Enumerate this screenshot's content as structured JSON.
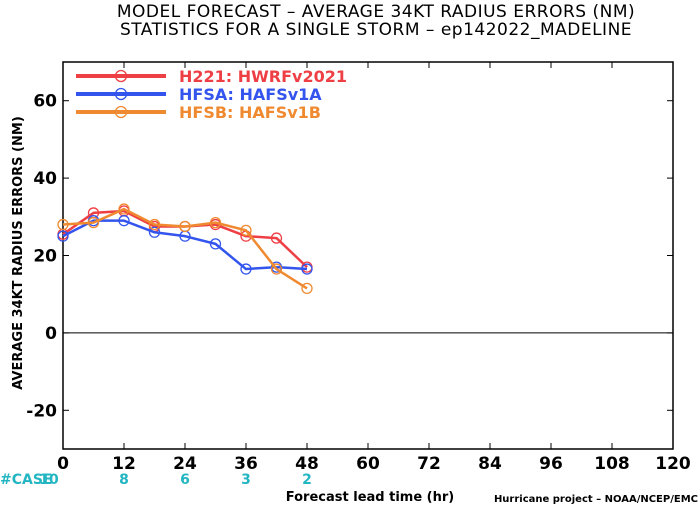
{
  "title_line1": "MODEL FORECAST – AVERAGE 34KT RADIUS ERRORS (NM)",
  "title_line2": "STATISTICS FOR A SINGLE STORM – ep142022_MADELINE",
  "footer_credit": "Hurricane project – NOAA/NCEP/EMC",
  "case_row": {
    "label": "#CASE",
    "color": "#22b5c2",
    "hours": [
      0,
      12,
      24,
      36,
      48
    ],
    "counts": [
      "10",
      "8",
      "6",
      "3",
      "2"
    ]
  },
  "chart_data": {
    "type": "line",
    "title": "MODEL FORECAST – AVERAGE 34KT RADIUS ERRORS (NM)",
    "subtitle": "STATISTICS FOR A SINGLE STORM – ep142022_MADELINE",
    "xlabel": "Forecast lead time (hr)",
    "ylabel": "AVERAGE 34KT RADIUS ERRORS (NM)",
    "xlim": [
      0,
      120
    ],
    "ylim": [
      -30,
      70
    ],
    "x_ticks": [
      0,
      12,
      24,
      36,
      48,
      60,
      72,
      84,
      96,
      108,
      120
    ],
    "y_ticks": [
      -20,
      0,
      20,
      40,
      60
    ],
    "zero_line": true,
    "grid": false,
    "legend_position": "top-left",
    "x": [
      0,
      6,
      12,
      18,
      24,
      30,
      36,
      42,
      48
    ],
    "series": [
      {
        "name": "H221: HWRFv2021",
        "color": "#ee3f45",
        "values": [
          25.5,
          31.0,
          31.5,
          27.5,
          27.5,
          28.0,
          25.0,
          24.5,
          17.0
        ]
      },
      {
        "name": "HFSA: HAFSv1A",
        "color": "#3355ee",
        "values": [
          25.0,
          29.0,
          29.0,
          26.0,
          25.0,
          23.0,
          16.5,
          17.0,
          16.5
        ]
      },
      {
        "name": "HFSB: HAFSv1B",
        "color": "#f08a30",
        "values": [
          28.0,
          28.5,
          32.0,
          28.0,
          27.5,
          28.5,
          26.5,
          16.5,
          11.5
        ]
      }
    ]
  }
}
